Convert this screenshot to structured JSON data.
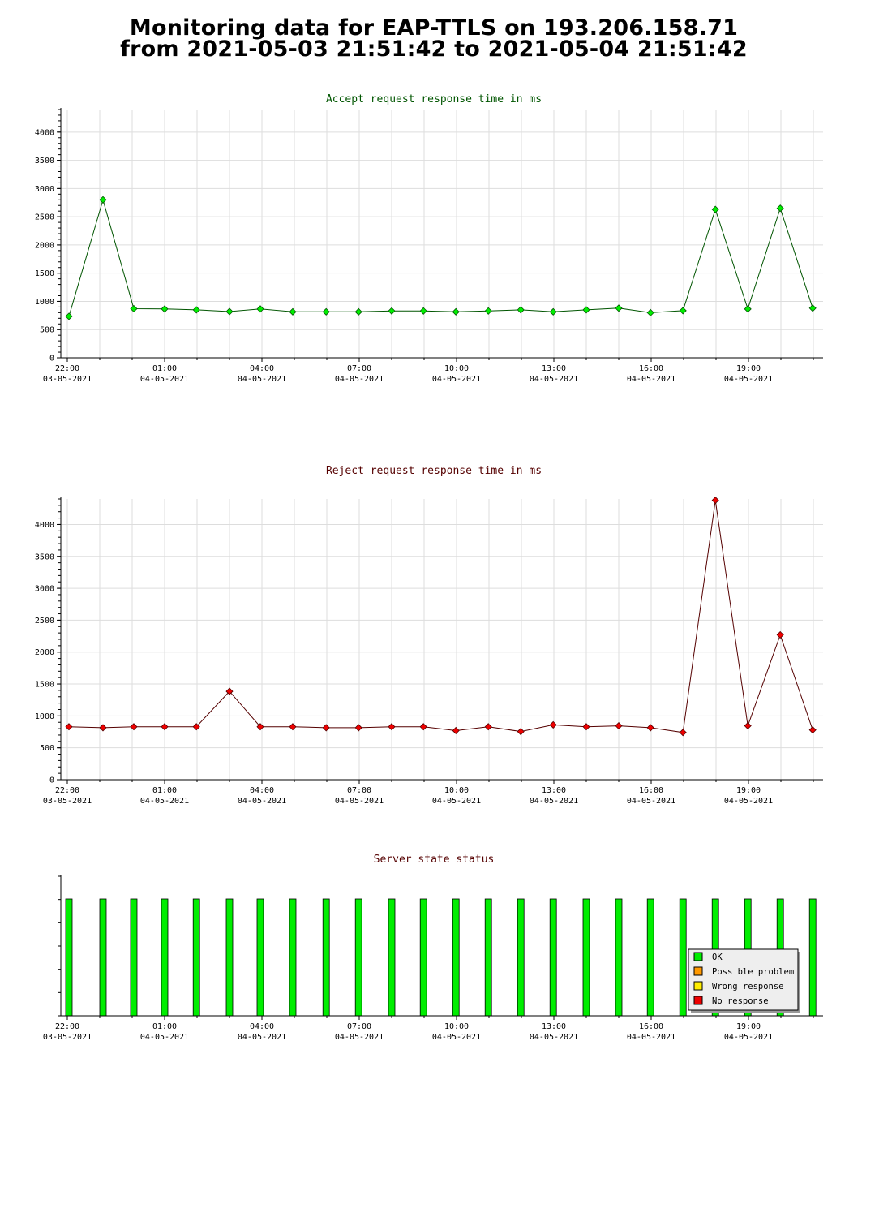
{
  "title": {
    "line1": "Monitoring data for EAP-TTLS on 193.206.158.71",
    "line2": "from 2021-05-03 21:51:42 to 2021-05-04 21:51:42"
  },
  "colors": {
    "accept_title": "#005500",
    "reject_title": "#550000",
    "status_title": "#550000",
    "accept_line": "#005500",
    "accept_point": "#00ee00",
    "reject_line": "#550000",
    "reject_point": "#ee0000",
    "ok": "#00ee00",
    "possible_problem": "#ff9900",
    "wrong_response": "#ffee00",
    "no_response": "#ee0000"
  },
  "chart_data": [
    {
      "type": "line",
      "title": "Accept request response time in ms",
      "x_unit": "hours since 2021-05-03 22:00",
      "xlim": [
        -0.2,
        23.3
      ],
      "ylim": [
        0,
        4400
      ],
      "yticks": [
        0,
        500,
        1000,
        1500,
        2000,
        2500,
        3000,
        3500,
        4000
      ],
      "xticks": [
        {
          "x": 0,
          "time": "22:00",
          "date": "03-05-2021"
        },
        {
          "x": 3,
          "time": "01:00",
          "date": "04-05-2021"
        },
        {
          "x": 6,
          "time": "04:00",
          "date": "04-05-2021"
        },
        {
          "x": 9,
          "time": "07:00",
          "date": "04-05-2021"
        },
        {
          "x": 12,
          "time": "10:00",
          "date": "04-05-2021"
        },
        {
          "x": 15,
          "time": "13:00",
          "date": "04-05-2021"
        },
        {
          "x": 18,
          "time": "16:00",
          "date": "04-05-2021"
        },
        {
          "x": 21,
          "time": "19:00",
          "date": "04-05-2021"
        }
      ],
      "grid": true,
      "x": [
        0.05,
        1.1,
        2.05,
        3.0,
        3.98,
        5.0,
        5.95,
        6.95,
        7.98,
        8.98,
        10.0,
        10.98,
        11.98,
        12.98,
        13.98,
        14.98,
        16.0,
        17.0,
        17.98,
        18.98,
        19.98,
        20.98,
        21.98,
        22.98
      ],
      "values": [
        735,
        2800,
        870,
        865,
        850,
        820,
        865,
        815,
        815,
        815,
        830,
        830,
        815,
        830,
        850,
        815,
        850,
        880,
        800,
        835,
        2630,
        865,
        2650,
        880
      ]
    },
    {
      "type": "line",
      "title": "Reject request response time in ms",
      "x_unit": "hours since 2021-05-03 22:00",
      "xlim": [
        -0.2,
        23.3
      ],
      "ylim": [
        0,
        4400
      ],
      "yticks": [
        0,
        500,
        1000,
        1500,
        2000,
        2500,
        3000,
        3500,
        4000
      ],
      "xticks": [
        {
          "x": 0,
          "time": "22:00",
          "date": "03-05-2021"
        },
        {
          "x": 3,
          "time": "01:00",
          "date": "04-05-2021"
        },
        {
          "x": 6,
          "time": "04:00",
          "date": "04-05-2021"
        },
        {
          "x": 9,
          "time": "07:00",
          "date": "04-05-2021"
        },
        {
          "x": 12,
          "time": "10:00",
          "date": "04-05-2021"
        },
        {
          "x": 15,
          "time": "13:00",
          "date": "04-05-2021"
        },
        {
          "x": 18,
          "time": "16:00",
          "date": "04-05-2021"
        },
        {
          "x": 21,
          "time": "19:00",
          "date": "04-05-2021"
        }
      ],
      "grid": true,
      "x": [
        0.05,
        1.1,
        2.05,
        3.0,
        3.98,
        5.0,
        5.95,
        6.95,
        7.98,
        8.98,
        10.0,
        10.98,
        11.98,
        12.98,
        13.98,
        14.98,
        16.0,
        17.0,
        17.98,
        18.98,
        19.98,
        20.98,
        21.98,
        22.98
      ],
      "values": [
        830,
        815,
        830,
        830,
        830,
        1385,
        830,
        830,
        815,
        815,
        830,
        830,
        770,
        830,
        755,
        860,
        830,
        845,
        815,
        740,
        4380,
        845,
        2270,
        780
      ]
    },
    {
      "type": "bar",
      "title": "Server state status",
      "x_unit": "hours since 2021-05-03 22:00",
      "xlim": [
        -0.2,
        23.3
      ],
      "xticks": [
        {
          "x": 0,
          "time": "22:00",
          "date": "03-05-2021"
        },
        {
          "x": 3,
          "time": "01:00",
          "date": "04-05-2021"
        },
        {
          "x": 6,
          "time": "04:00",
          "date": "04-05-2021"
        },
        {
          "x": 9,
          "time": "07:00",
          "date": "04-05-2021"
        },
        {
          "x": 12,
          "time": "10:00",
          "date": "04-05-2021"
        },
        {
          "x": 15,
          "time": "13:00",
          "date": "04-05-2021"
        },
        {
          "x": 18,
          "time": "16:00",
          "date": "04-05-2021"
        },
        {
          "x": 21,
          "time": "19:00",
          "date": "04-05-2021"
        }
      ],
      "grid": false,
      "x": [
        0.05,
        1.1,
        2.05,
        3.0,
        3.98,
        5.0,
        5.95,
        6.95,
        7.98,
        8.98,
        10.0,
        10.98,
        11.98,
        12.98,
        13.98,
        14.98,
        16.0,
        17.0,
        17.98,
        18.98,
        19.98,
        20.98,
        21.98,
        22.98
      ],
      "states": [
        "OK",
        "OK",
        "OK",
        "OK",
        "OK",
        "OK",
        "OK",
        "OK",
        "OK",
        "OK",
        "OK",
        "OK",
        "OK",
        "OK",
        "OK",
        "OK",
        "OK",
        "OK",
        "OK",
        "OK",
        "OK",
        "OK",
        "OK",
        "OK"
      ],
      "legend_position": "bottom-right",
      "legend": [
        "OK",
        "Possible problem",
        "Wrong response",
        "No response"
      ]
    }
  ]
}
